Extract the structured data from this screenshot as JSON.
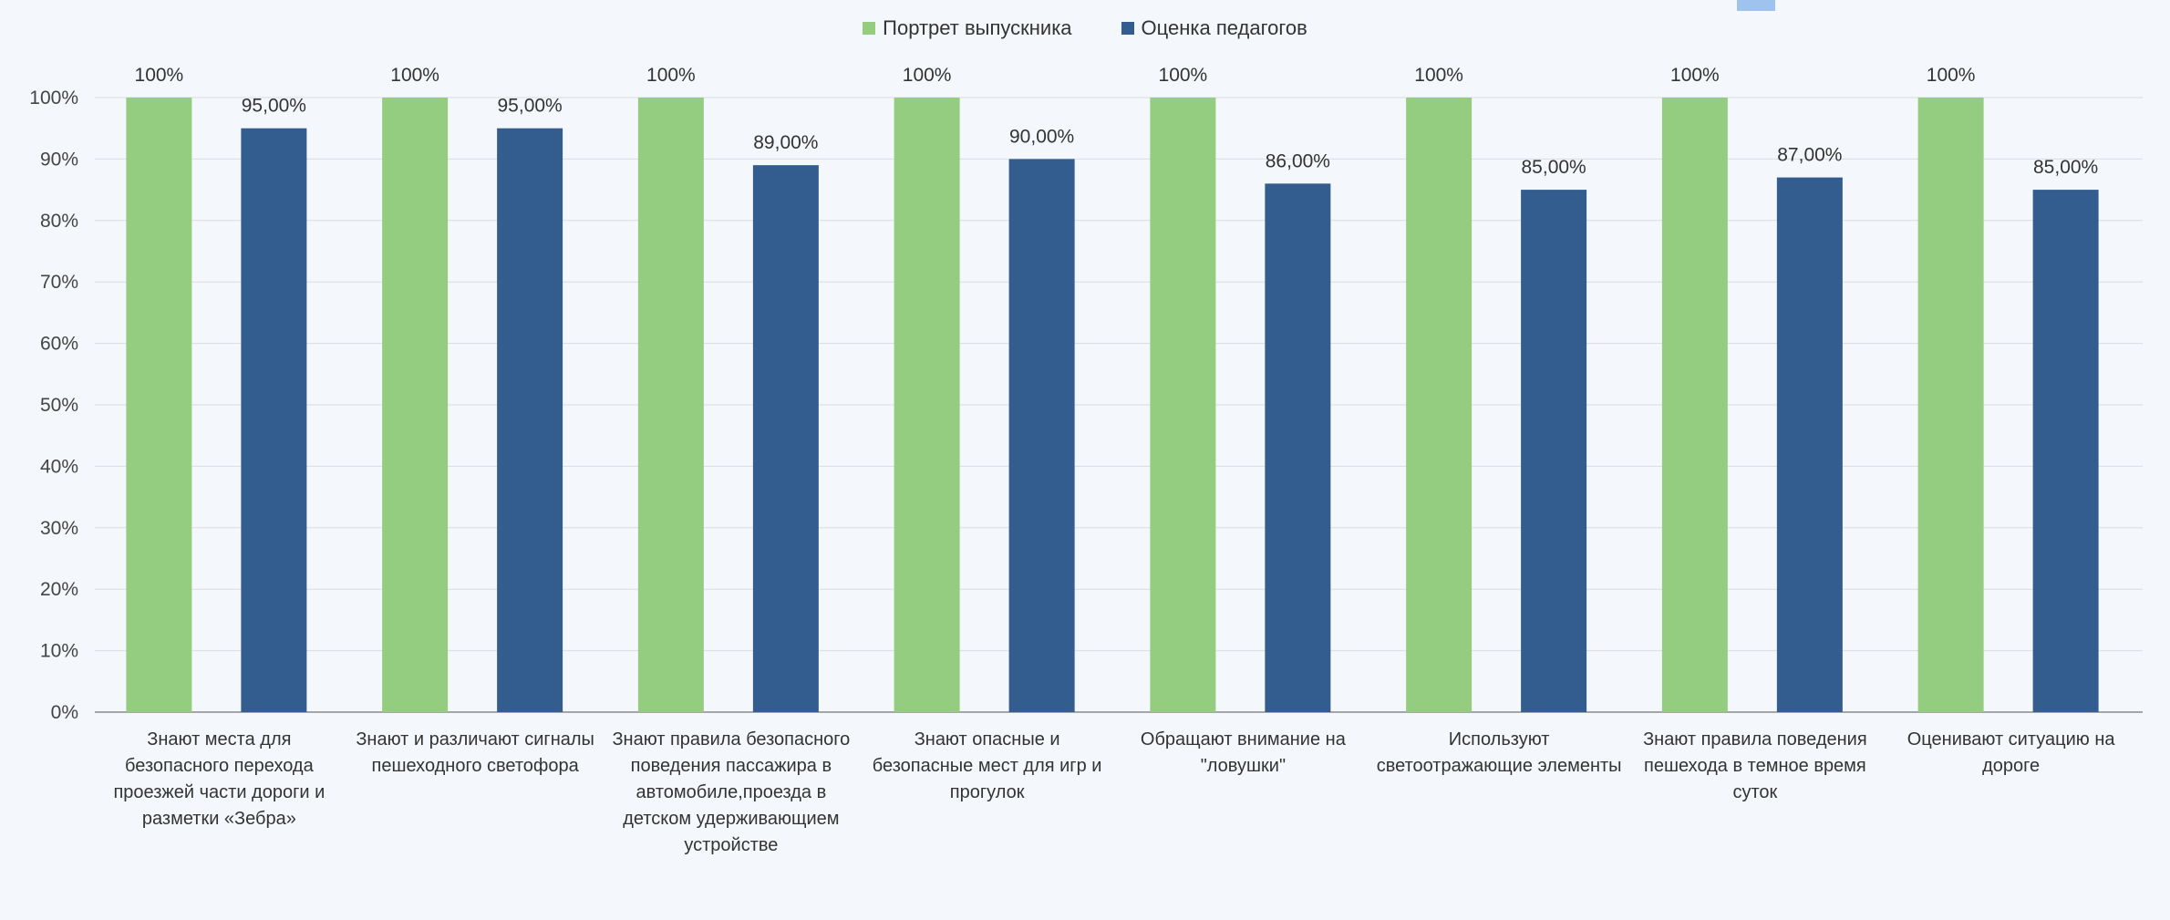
{
  "chart_data": {
    "type": "bar",
    "categories": [
      "Знают места для безопасного перехода проезжей части дороги и разметки «Зебра»",
      "Знают и различают сигналы пешеходного светофора",
      "Знают правила безопасного поведения пассажира в автомобиле,проезда в детском удерживающием устройстве",
      "Знают опасные и безопасные мест для игр и прогулок",
      "Обращают внимание на \"ловушки\"",
      "Используют светоотражающие элементы",
      "Знают правила поведения пешехода в темное время суток",
      "Оценивают ситуацию на дороге"
    ],
    "series": [
      {
        "name": "Портрет выпускника",
        "color": "#95cd80",
        "values": [
          100,
          100,
          100,
          100,
          100,
          100,
          100,
          100
        ],
        "labels": [
          "100%",
          "100%",
          "100%",
          "100%",
          "100%",
          "100%",
          "100%",
          "100%"
        ]
      },
      {
        "name": "Оценка педагогов",
        "color": "#335d8e",
        "values": [
          95,
          95,
          89,
          90,
          86,
          85,
          87,
          85
        ],
        "labels": [
          "95,00%",
          "95,00%",
          "89,00%",
          "90,00%",
          "86,00%",
          "85,00%",
          "87,00%",
          "85,00%"
        ]
      }
    ],
    "ylim": [
      0,
      100
    ],
    "yticks": [
      "0%",
      "10%",
      "20%",
      "30%",
      "40%",
      "50%",
      "60%",
      "70%",
      "80%",
      "90%",
      "100%"
    ],
    "grid": true,
    "legend_position": "top"
  }
}
